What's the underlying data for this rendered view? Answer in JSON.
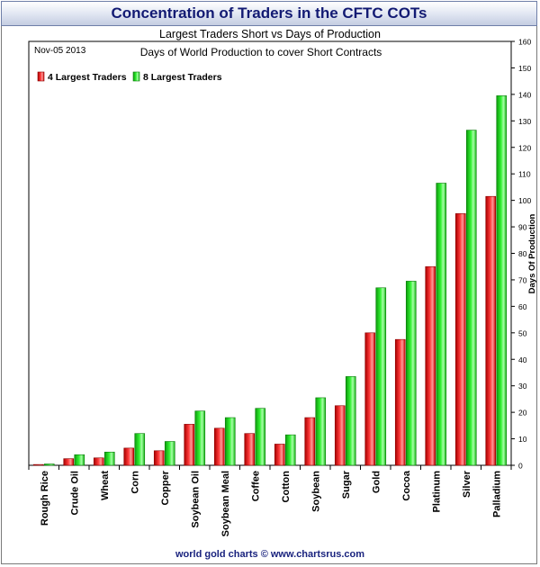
{
  "header": {
    "title": "Concentration of Traders in the CFTC COTs",
    "subtitle": "Largest Traders Short vs Days of Production"
  },
  "footer": {
    "credit": "world gold charts © www.chartsrus.com"
  },
  "colors": {
    "series_4": "#ff2b2b",
    "series_8": "#22ee22",
    "banner_text": "#121a73",
    "footer_text": "#1a237e"
  },
  "chart_data": {
    "type": "bar",
    "title": "Largest Traders Short vs Days of Production",
    "date_label": "Nov-05 2013",
    "annotation": "Days of World Production to cover Short Contracts",
    "ylabel": "Days Of Production",
    "xlabel": "",
    "ylim": [
      0,
      160
    ],
    "y_ticks": [
      0,
      10,
      20,
      30,
      40,
      50,
      60,
      70,
      80,
      90,
      100,
      110,
      120,
      130,
      140,
      150,
      160
    ],
    "y_axis_side": "right",
    "grid": false,
    "legend_position": "top-left",
    "categories": [
      "Rough Rice",
      "Crude Oil",
      "Wheat",
      "Corn",
      "Copper",
      "Soybean Oil",
      "Soybean Meal",
      "Coffee",
      "Cotton",
      "Soybean",
      "Sugar",
      "Gold",
      "Cocoa",
      "Platinum",
      "Silver",
      "Palladium"
    ],
    "series": [
      {
        "name": "4 Largest Traders",
        "values": [
          0.3,
          2.5,
          2.8,
          6.5,
          5.5,
          15.5,
          14,
          12,
          8,
          18,
          22.5,
          50,
          47.5,
          75,
          95,
          101.5
        ]
      },
      {
        "name": "8 Largest Traders",
        "values": [
          0.5,
          4,
          5,
          12,
          9,
          20.5,
          18,
          21.5,
          11.5,
          25.5,
          33.5,
          67,
          69.5,
          106.5,
          126.5,
          139.5
        ]
      }
    ]
  }
}
